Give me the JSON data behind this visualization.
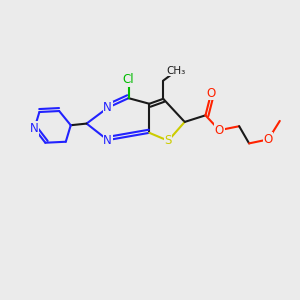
{
  "background_color": "#ebebeb",
  "bond_color": "#1a1a1a",
  "bond_width": 1.5,
  "atom_colors": {
    "N": "#2222ff",
    "S": "#cccc00",
    "Cl": "#00bb00",
    "O": "#ff2200",
    "C": "#1a1a1a"
  },
  "figsize": [
    3.0,
    3.0
  ],
  "dpi": 100,
  "xlim": [
    0,
    3.0
  ],
  "ylim": [
    0,
    3.0
  ]
}
